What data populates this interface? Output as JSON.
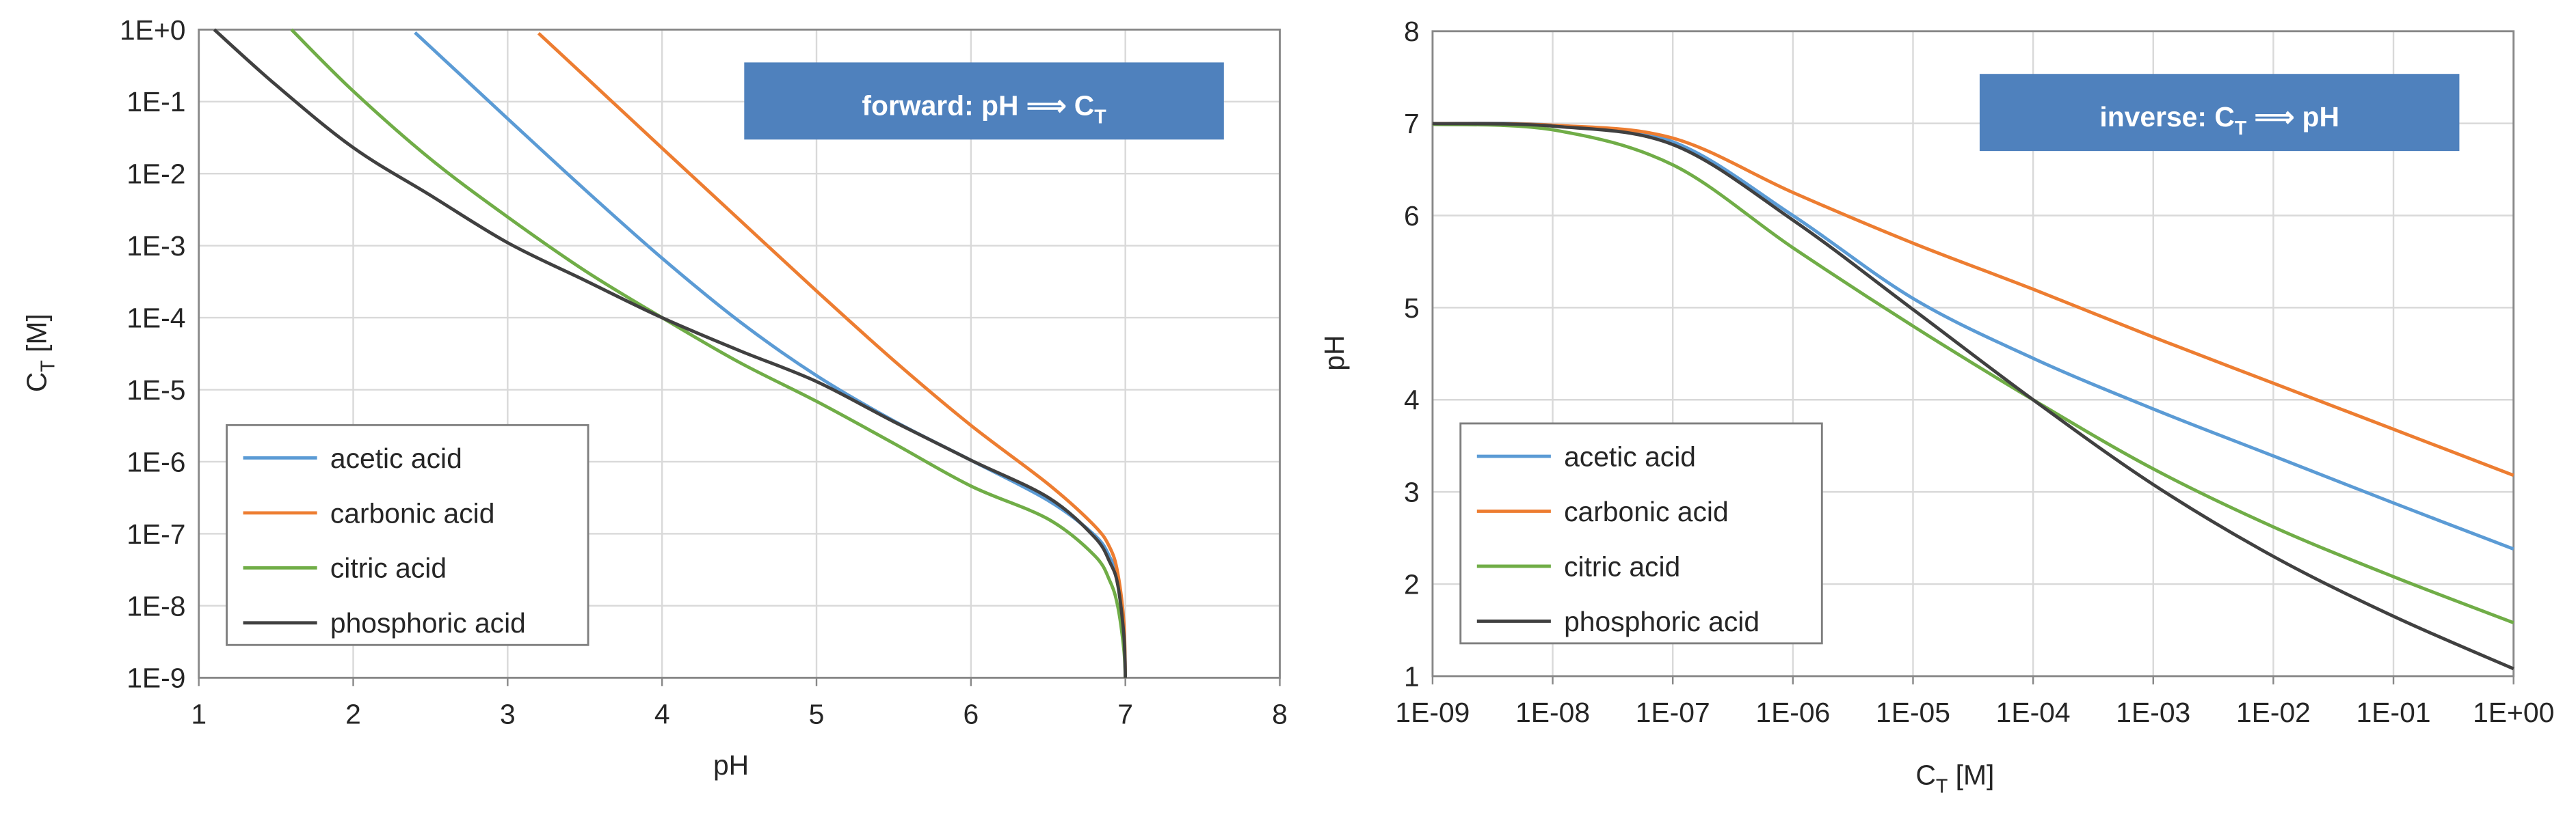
{
  "chart_data": [
    {
      "type": "line",
      "annotation": {
        "main": "forward:  pH ⟹ C",
        "sub": "T"
      },
      "xlabel": {
        "main": "pH"
      },
      "ylabel": {
        "main": "C",
        "sub": "T",
        "rest": " [M]"
      },
      "xlim": [
        1,
        8
      ],
      "xticks": [
        1,
        2,
        3,
        4,
        5,
        6,
        7,
        8
      ],
      "ylim": [
        1e-09,
        1
      ],
      "ylog": true,
      "yticks": [
        {
          "value": 1,
          "label": "1E+0"
        },
        {
          "value": 0.1,
          "label": "1E-1"
        },
        {
          "value": 0.01,
          "label": "1E-2"
        },
        {
          "value": 0.001,
          "label": "1E-3"
        },
        {
          "value": 0.0001,
          "label": "1E-4"
        },
        {
          "value": 1e-05,
          "label": "1E-5"
        },
        {
          "value": 1e-06,
          "label": "1E-6"
        },
        {
          "value": 1e-07,
          "label": "1E-7"
        },
        {
          "value": 1e-08,
          "label": "1E-8"
        },
        {
          "value": 1e-09,
          "label": "1E-9"
        }
      ],
      "grid": true,
      "legend": "lower left",
      "series": [
        {
          "name": "acetic acid",
          "color": "#5b9bd5",
          "x": [
            2.4,
            2.7,
            3,
            3.5,
            4,
            4.5,
            5,
            5.5,
            6,
            6.5,
            6.8,
            6.9,
            6.95,
            6.99,
            7
          ],
          "values": [
            0.91,
            0.23,
            0.058,
            0.006,
            0.00067,
            8.9e-05,
            1.57e-05,
            3.7e-06,
            1.05e-06,
            2.9e-07,
            9.6e-08,
            4.7e-08,
            2.3e-08,
            4.6e-09,
            1e-09
          ]
        },
        {
          "name": "carbonic acid",
          "color": "#ed7d31",
          "x": [
            3.2,
            3.5,
            4,
            4.5,
            5,
            5.5,
            6,
            6.5,
            6.8,
            6.9,
            6.95,
            6.99,
            7
          ],
          "values": [
            0.89,
            0.225,
            0.0226,
            0.0023,
            0.000235,
            2.55e-05,
            3.2e-06,
            4.9e-07,
            1.29e-07,
            6.4e-08,
            2.9e-08,
            6e-09,
            1e-09
          ]
        },
        {
          "name": "citric acid",
          "color": "#70ad47",
          "x": [
            1.6,
            2,
            2.5,
            3,
            3.5,
            4,
            4.5,
            5,
            5.5,
            6,
            6.5,
            6.8,
            6.9,
            6.95,
            6.99,
            7
          ],
          "values": [
            1,
            0.14,
            0.016,
            0.0025,
            0.00045,
            0.0001,
            2.4e-05,
            6.9e-06,
            1.8e-06,
            4.6e-07,
            1.6e-07,
            5e-08,
            2.2e-08,
            1e-08,
            2.5e-09,
            1e-09
          ]
        },
        {
          "name": "phosphoric acid",
          "color": "#404040",
          "x": [
            1.1,
            1.5,
            2,
            2.5,
            3,
            3.5,
            4,
            4.5,
            5,
            5.5,
            6,
            6.5,
            6.8,
            6.9,
            6.95,
            6.99,
            7
          ],
          "values": [
            1,
            0.17,
            0.023,
            0.005,
            0.0011,
            0.00033,
            0.0001,
            3.5e-05,
            1.3e-05,
            3.6e-06,
            1.05e-06,
            3.2e-07,
            9e-08,
            4e-08,
            2e-08,
            4e-09,
            1e-09
          ]
        }
      ]
    },
    {
      "type": "line",
      "annotation": {
        "main": "inverse:  C",
        "sub": "T",
        "rest": " ⟹ pH"
      },
      "xlabel": {
        "main": "C",
        "sub": "T",
        "rest": " [M]"
      },
      "ylabel": {
        "main": "pH"
      },
      "xlim": [
        1e-09,
        1
      ],
      "xlog": true,
      "xticks": [
        {
          "value": 1e-09,
          "label": "1E-09"
        },
        {
          "value": 1e-08,
          "label": "1E-08"
        },
        {
          "value": 1e-07,
          "label": "1E-07"
        },
        {
          "value": 1e-06,
          "label": "1E-06"
        },
        {
          "value": 1e-05,
          "label": "1E-05"
        },
        {
          "value": 0.0001,
          "label": "1E-04"
        },
        {
          "value": 0.001,
          "label": "1E-03"
        },
        {
          "value": 0.01,
          "label": "1E-02"
        },
        {
          "value": 0.1,
          "label": "1E-01"
        },
        {
          "value": 1,
          "label": "1E+00"
        }
      ],
      "ylim": [
        1,
        8
      ],
      "yticks": [
        1,
        2,
        3,
        4,
        5,
        6,
        7,
        8
      ],
      "grid": true,
      "legend": "lower left",
      "series": [
        {
          "name": "acetic acid",
          "color": "#5b9bd5",
          "x": [
            1e-09,
            1e-08,
            1e-07,
            1e-06,
            1e-05,
            0.0001,
            0.001,
            0.01,
            0.1,
            1
          ],
          "values": [
            6.998,
            6.98,
            6.8,
            6.0,
            5.1,
            4.45,
            3.9,
            3.39,
            2.88,
            2.38
          ]
        },
        {
          "name": "carbonic acid",
          "color": "#ed7d31",
          "x": [
            1e-09,
            1e-08,
            1e-07,
            1e-06,
            1e-05,
            0.0001,
            0.001,
            0.01,
            0.1,
            1
          ],
          "values": [
            6.998,
            6.98,
            6.84,
            6.25,
            5.7,
            5.2,
            4.68,
            4.18,
            3.68,
            3.18
          ]
        },
        {
          "name": "citric acid",
          "color": "#70ad47",
          "x": [
            1e-09,
            1e-08,
            1e-07,
            1e-06,
            1e-05,
            0.0001,
            0.001,
            0.01,
            0.1,
            1
          ],
          "values": [
            6.99,
            6.93,
            6.55,
            5.65,
            4.8,
            4.0,
            3.25,
            2.62,
            2.08,
            1.58
          ]
        },
        {
          "name": "phosphoric acid",
          "color": "#404040",
          "x": [
            1e-09,
            1e-08,
            1e-07,
            1e-06,
            1e-05,
            0.0001,
            0.001,
            0.01,
            0.1,
            1
          ],
          "values": [
            6.998,
            6.97,
            6.77,
            5.95,
            4.98,
            4.0,
            3.08,
            2.3,
            1.65,
            1.08
          ]
        }
      ]
    }
  ]
}
